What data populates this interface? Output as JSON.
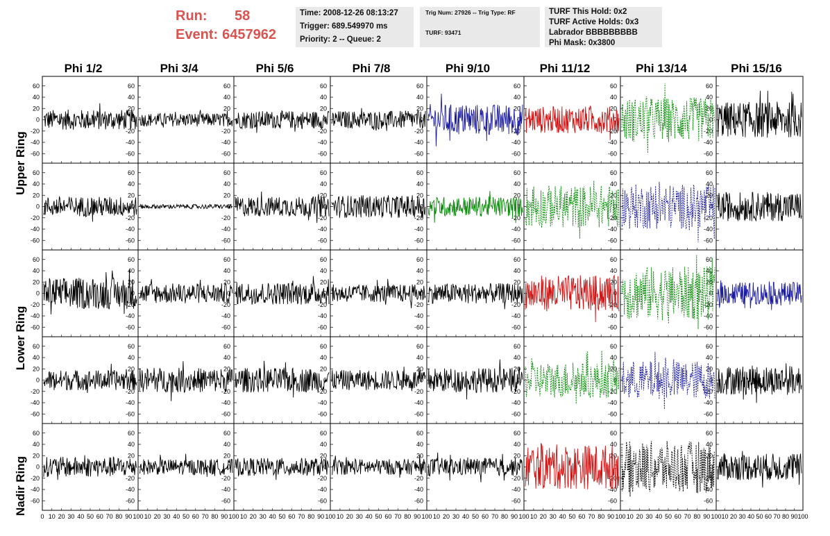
{
  "header": {
    "run_label": "Run:",
    "run_value": "58",
    "event_label": "Event:",
    "event_value": "6457962"
  },
  "info_box_1": [
    "Time: 2008-12-26 08:13:27",
    "Trigger: 689.549970 ms",
    "Priority: 2 -- Queue: 2"
  ],
  "info_box_2": {
    "trig_line": "Trig Num: 27926 -- Trig Type: RF",
    "turf_line": "TURF: 93471"
  },
  "info_box_3": [
    "TURF This Hold: 0x2",
    "TURF Active Holds: 0x3",
    "Labrador BBBBBBBBB",
    "Phi Mask: 0x3800"
  ],
  "columns": [
    "Phi 1/2",
    "Phi 3/4",
    "Phi 5/6",
    "Phi 7/8",
    "Phi 9/10",
    "Phi 11/12",
    "Phi 13/14",
    "Phi 15/16"
  ],
  "rows": [
    "Upper Ring",
    "Lower Ring",
    "Nadir Ring"
  ],
  "y_ticks": [
    "60",
    "40",
    "20",
    "0",
    "-20",
    "-40",
    "-60"
  ],
  "x_ticks": [
    "0",
    "10",
    "20",
    "30",
    "40",
    "50",
    "60",
    "70",
    "80",
    "90",
    "100"
  ],
  "colors": {
    "title_red": "#d9534f",
    "info_bg": "#e9e9e9",
    "trace_black": "#000000",
    "trace_blue": "#1a1aa0",
    "trace_red": "#d01010",
    "trace_green": "#0a8a0a"
  },
  "panels": [
    [
      {
        "color": "black",
        "amp": 18,
        "dash": false
      },
      {
        "color": "black",
        "amp": 12,
        "dash": false
      },
      {
        "color": "black",
        "amp": 16,
        "dash": false
      },
      {
        "color": "black",
        "amp": 16,
        "dash": false
      },
      {
        "color": "blue",
        "amp": 28,
        "dash": false
      },
      {
        "color": "red",
        "amp": 24,
        "dash": false
      },
      {
        "color": "green",
        "amp": 40,
        "dash": true
      },
      {
        "color": "black",
        "amp": 32,
        "dash": false
      }
    ],
    [
      {
        "color": "black",
        "amp": 18,
        "dash": false
      },
      {
        "color": "black",
        "amp": 4,
        "dash": false
      },
      {
        "color": "black",
        "amp": 18,
        "dash": false
      },
      {
        "color": "black",
        "amp": 20,
        "dash": false
      },
      {
        "color": "green",
        "amp": 18,
        "dash": false
      },
      {
        "color": "green",
        "amp": 38,
        "dash": true
      },
      {
        "color": "blue",
        "amp": 40,
        "dash": true
      },
      {
        "color": "black",
        "amp": 26,
        "dash": false
      }
    ],
    [
      {
        "color": "black",
        "amp": 28,
        "dash": false
      },
      {
        "color": "black",
        "amp": 18,
        "dash": false
      },
      {
        "color": "black",
        "amp": 20,
        "dash": false
      },
      {
        "color": "black",
        "amp": 16,
        "dash": false
      },
      {
        "color": "black",
        "amp": 18,
        "dash": false
      },
      {
        "color": "red",
        "amp": 32,
        "dash": false
      },
      {
        "color": "green",
        "amp": 48,
        "dash": true
      },
      {
        "color": "blue",
        "amp": 20,
        "dash": false
      }
    ],
    [
      {
        "color": "black",
        "amp": 18,
        "dash": false
      },
      {
        "color": "black",
        "amp": 22,
        "dash": false
      },
      {
        "color": "black",
        "amp": 22,
        "dash": false
      },
      {
        "color": "black",
        "amp": 18,
        "dash": false
      },
      {
        "color": "black",
        "amp": 22,
        "dash": false
      },
      {
        "color": "green",
        "amp": 32,
        "dash": true
      },
      {
        "color": "blue",
        "amp": 34,
        "dash": true
      },
      {
        "color": "black",
        "amp": 26,
        "dash": false
      }
    ],
    [
      {
        "color": "black",
        "amp": 18,
        "dash": false
      },
      {
        "color": "black",
        "amp": 14,
        "dash": false
      },
      {
        "color": "black",
        "amp": 16,
        "dash": false
      },
      {
        "color": "black",
        "amp": 14,
        "dash": false
      },
      {
        "color": "black",
        "amp": 16,
        "dash": false
      },
      {
        "color": "red",
        "amp": 40,
        "dash": false
      },
      {
        "color": "black",
        "amp": 46,
        "dash": true
      },
      {
        "color": "black",
        "amp": 24,
        "dash": false
      }
    ]
  ]
}
